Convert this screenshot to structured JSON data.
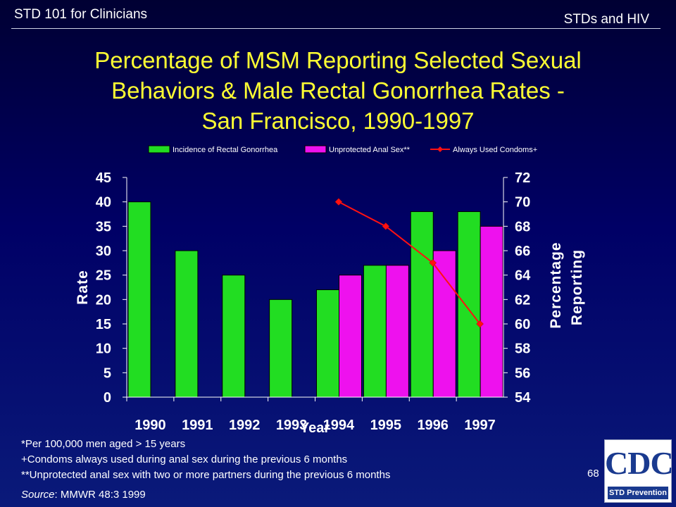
{
  "header": {
    "left": "STD 101 for Clinicians",
    "right": "STDs and HIV"
  },
  "title_lines": [
    "Percentage of MSM Reporting Selected Sexual",
    "Behaviors & Male Rectal Gonorrhea Rates -",
    "San Francisco, 1990-1997"
  ],
  "chart_data": {
    "type": "bar",
    "categories": [
      "1990",
      "1991",
      "1992",
      "1993",
      "1994",
      "1995",
      "1996",
      "1997"
    ],
    "xlabel": "Year",
    "ylabel": "Rate",
    "y2label_lines": [
      "Percentage",
      "Reporting"
    ],
    "ylim": [
      0,
      45
    ],
    "y_ticks": [
      0,
      5,
      10,
      15,
      20,
      25,
      30,
      35,
      40,
      45
    ],
    "y2lim": [
      54,
      72
    ],
    "y2_ticks": [
      54,
      56,
      58,
      60,
      62,
      64,
      66,
      68,
      70,
      72
    ],
    "legend_position": "top",
    "grid": false,
    "series": [
      {
        "name": "Incidence of Rectal Gonorrhea",
        "kind": "bar",
        "axis": "left",
        "color": "#22dd22",
        "values": [
          40,
          30,
          25,
          20,
          22,
          27,
          38,
          38
        ]
      },
      {
        "name": "Unprotected Anal Sex**",
        "kind": "bar",
        "axis": "left",
        "color": "#ee11ee",
        "values": [
          null,
          null,
          null,
          null,
          25,
          27,
          30,
          35
        ]
      },
      {
        "name": "Always Used Condoms+",
        "kind": "line",
        "axis": "right",
        "color": "#ff1111",
        "values": [
          null,
          null,
          null,
          null,
          70,
          68,
          65,
          60
        ]
      }
    ]
  },
  "footnotes": [
    "*Per 100,000 men aged > 15 years",
    "+Condoms always used during anal sex during the previous 6 months",
    "**Unprotected anal sex with two or more partners during the previous 6 months"
  ],
  "source": {
    "label": "Source",
    "text": ": MMWR 48:3 1999"
  },
  "page_number": "68",
  "logo": {
    "letters": "CDC",
    "band": "STD Prevention"
  }
}
